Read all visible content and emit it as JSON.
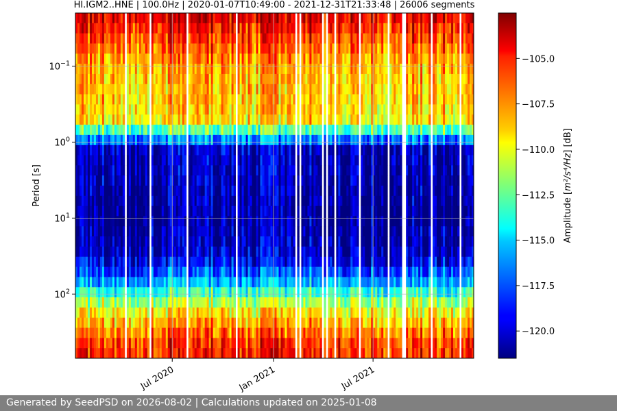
{
  "chart_data": {
    "type": "heatmap",
    "title": "HI.IGM2..HNE | 100.0Hz | 2020-01-07T10:49:00 - 2021-12-31T21:33:48 | 26006 segments",
    "ylabel": "Period [s]",
    "xlabel": "",
    "y_scale": "log",
    "y_inverted": true,
    "ylim": [
      0.02,
      700
    ],
    "y_ticks": [
      {
        "value": 0.1,
        "base": "10",
        "exp": "−1"
      },
      {
        "value": 1,
        "base": "10",
        "exp": "0"
      },
      {
        "value": 10,
        "base": "10",
        "exp": "1"
      },
      {
        "value": 100,
        "base": "10",
        "exp": "2"
      }
    ],
    "xlim": [
      "2020-01-07",
      "2021-12-31"
    ],
    "x_ticks": [
      {
        "value": "2020-07-01",
        "label": "Jul 2020"
      },
      {
        "value": "2021-01-01",
        "label": "Jan 2021"
      },
      {
        "value": "2021-07-01",
        "label": "Jul 2021"
      }
    ],
    "grid": true,
    "colorbar": {
      "label_main": "Amplitude [",
      "label_math": "m²/s⁴/Hz",
      "label_end": "] [dB]",
      "colormap": "jet",
      "range": [
        -121.5,
        -102.5
      ],
      "ticks": [
        "−105.0",
        "−107.5",
        "−110.0",
        "−112.5",
        "−115.0",
        "−117.5",
        "−120.0"
      ],
      "tick_values": [
        -105.0,
        -107.5,
        -110.0,
        -112.5,
        -115.0,
        -117.5,
        -120.0
      ]
    },
    "profile": {
      "description_values_db_by_period": [
        {
          "period": 0.02,
          "db": -104
        },
        {
          "period": 0.03,
          "db": -105
        },
        {
          "period": 0.1,
          "db": -108
        },
        {
          "period": 0.5,
          "db": -109
        },
        {
          "period": 0.9,
          "db": -116
        },
        {
          "period": 1.2,
          "db": -120
        },
        {
          "period": 10,
          "db": -121
        },
        {
          "period": 30,
          "db": -120
        },
        {
          "period": 60,
          "db": -117
        },
        {
          "period": 150,
          "db": -110
        },
        {
          "period": 400,
          "db": -106
        },
        {
          "period": 700,
          "db": -105
        }
      ]
    }
  },
  "footer": {
    "text": "Generated by SeedPSD on 2026-08-02 | Calculations updated on 2025-01-08"
  }
}
